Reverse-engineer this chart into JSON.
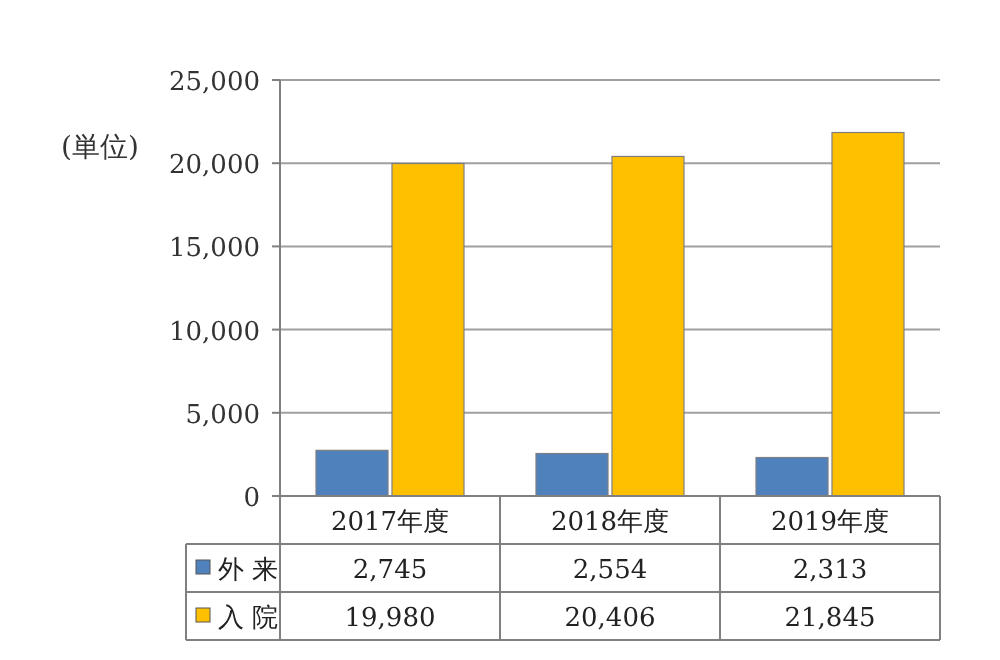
{
  "chart_data": {
    "type": "bar",
    "ylabel": "(単位)",
    "categories": [
      "2017年度",
      "2018年度",
      "2019年度"
    ],
    "series": [
      {
        "name": "外 来",
        "color": "#4f81bd",
        "values": [
          2745,
          2554,
          2313
        ],
        "value_labels": [
          "2,745",
          "2,554",
          "2,313"
        ]
      },
      {
        "name": "入 院",
        "color": "#ffc000",
        "values": [
          19980,
          20406,
          21845
        ],
        "value_labels": [
          "19,980",
          "20,406",
          "21,845"
        ]
      }
    ],
    "ylim": [
      0,
      25000
    ],
    "yticks": [
      {
        "value": 0,
        "label": "0"
      },
      {
        "value": 5000,
        "label": "5,000"
      },
      {
        "value": 10000,
        "label": "10,000"
      },
      {
        "value": 15000,
        "label": "15,000"
      },
      {
        "value": 20000,
        "label": "20,000"
      },
      {
        "value": 25000,
        "label": "25,000"
      }
    ],
    "grid": "y",
    "legend": "bottom"
  }
}
